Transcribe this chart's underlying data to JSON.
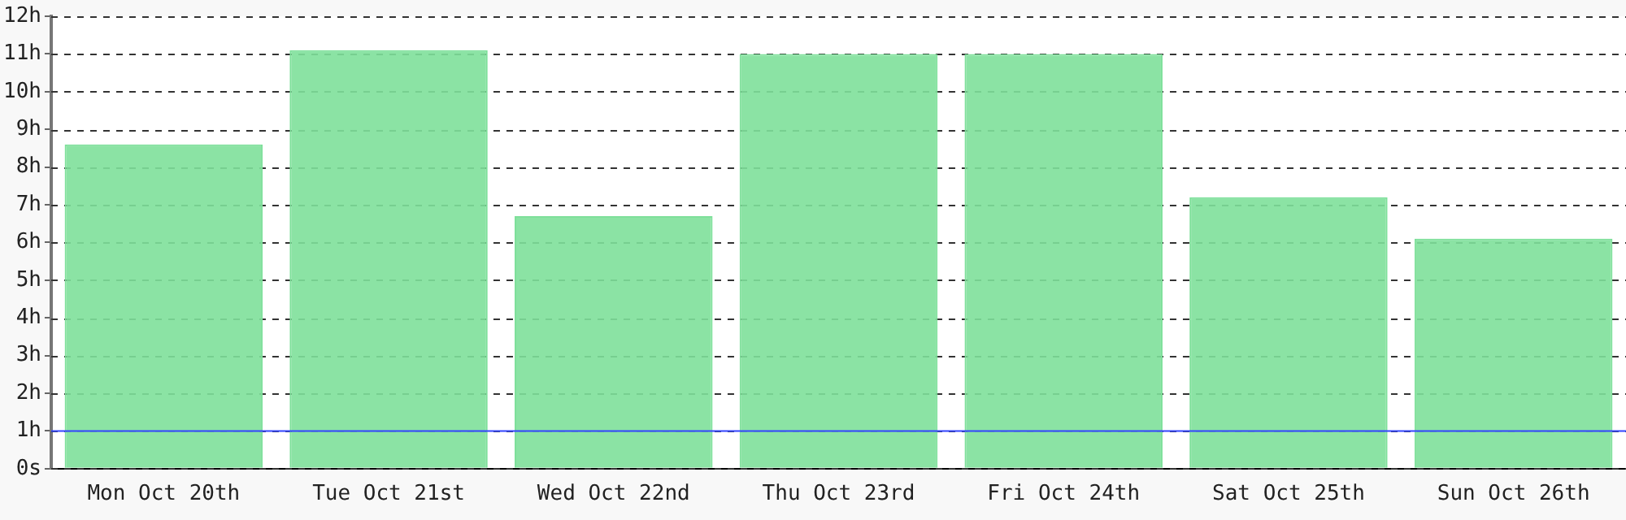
{
  "chart_data": {
    "type": "bar",
    "categories": [
      "Mon Oct 20th",
      "Tue Oct 21st",
      "Wed Oct 22nd",
      "Thu Oct 23rd",
      "Fri Oct 24th",
      "Sat Oct 25th",
      "Sun Oct 26th"
    ],
    "values": [
      8.6,
      11.1,
      6.7,
      11.0,
      11.0,
      7.2,
      6.1
    ],
    "color": "#7ee09a",
    "ylim": [
      0,
      12
    ],
    "yticks": [
      {
        "value": 0,
        "label": "0s"
      },
      {
        "value": 1,
        "label": "1h"
      },
      {
        "value": 2,
        "label": "2h"
      },
      {
        "value": 3,
        "label": "3h"
      },
      {
        "value": 4,
        "label": "4h"
      },
      {
        "value": 5,
        "label": "5h"
      },
      {
        "value": 6,
        "label": "6h"
      },
      {
        "value": 7,
        "label": "7h"
      },
      {
        "value": 8,
        "label": "8h"
      },
      {
        "value": 9,
        "label": "9h"
      },
      {
        "value": 10,
        "label": "10h"
      },
      {
        "value": 11,
        "label": "11h"
      },
      {
        "value": 12,
        "label": "12h"
      }
    ],
    "grid": "y",
    "legend": false,
    "ref_lines": [
      {
        "axis": "y",
        "value": 1,
        "color": "#3344ff",
        "line_style": "solid"
      }
    ]
  }
}
